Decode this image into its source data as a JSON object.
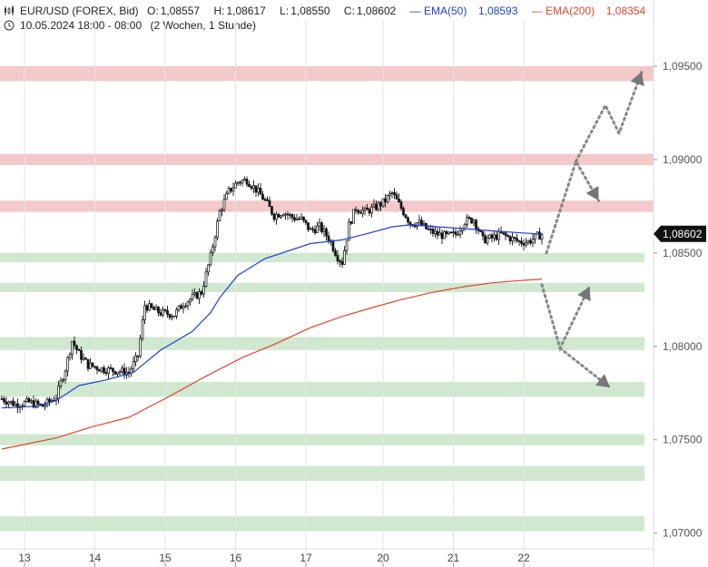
{
  "header": {
    "symbol": "EUR/USD (FOREX, Bid)",
    "open_label": "O:",
    "open": "1,08557",
    "high_label": "H:",
    "high": "1,08617",
    "low_label": "L:",
    "low": "1,08550",
    "close_label": "C:",
    "close": "1,08602",
    "ema50_label": "EMA(50)",
    "ema50_value": "1,08593",
    "ema200_label": "EMA(200)",
    "ema200_value": "1,08354",
    "range": "10.05.2024 18:00 - 08:00",
    "interval": "(2 Wochen, 1 Stunde)"
  },
  "chart_data": {
    "type": "candlestick",
    "ylim": [
      1.0695,
      1.0965
    ],
    "y_ticks": [
      "1,09500",
      "1,09000",
      "1,08500",
      "1,08000",
      "1,07500",
      "1,07000"
    ],
    "y_tick_values": [
      1.095,
      1.09,
      1.085,
      1.08,
      1.075,
      1.07
    ],
    "x_ticks": [
      "13",
      "14",
      "15",
      "16",
      "17",
      "20",
      "21",
      "22"
    ],
    "last_price_label": "1,08602",
    "last_price": 1.08602,
    "resistance_zones": [
      [
        1.0942,
        1.095
      ],
      [
        1.0897,
        1.0903
      ],
      [
        1.0872,
        1.0878
      ]
    ],
    "support_zones": [
      [
        1.0845,
        1.085
      ],
      [
        1.0829,
        1.0834
      ],
      [
        1.0798,
        1.0805
      ],
      [
        1.0773,
        1.0781
      ],
      [
        1.0747,
        1.0753
      ],
      [
        1.0728,
        1.0736
      ],
      [
        1.0701,
        1.0709
      ]
    ],
    "close_path": [
      [
        0,
        1.0772
      ],
      [
        6,
        1.0769
      ],
      [
        12,
        1.077
      ],
      [
        18,
        1.0768
      ],
      [
        24,
        1.0773
      ],
      [
        28,
        1.0788
      ],
      [
        31,
        1.0803
      ],
      [
        34,
        1.0796
      ],
      [
        38,
        1.079
      ],
      [
        44,
        1.0788
      ],
      [
        50,
        1.0787
      ],
      [
        56,
        1.0786
      ],
      [
        60,
        1.0795
      ],
      [
        63,
        1.0822
      ],
      [
        66,
        1.082
      ],
      [
        70,
        1.0818
      ],
      [
        76,
        1.0817
      ],
      [
        80,
        1.0823
      ],
      [
        84,
        1.0826
      ],
      [
        88,
        1.0829
      ],
      [
        92,
        1.0848
      ],
      [
        96,
        1.0872
      ],
      [
        100,
        1.0883
      ],
      [
        104,
        1.0888
      ],
      [
        108,
        1.0889
      ],
      [
        112,
        1.0884
      ],
      [
        116,
        1.0878
      ],
      [
        120,
        1.087
      ],
      [
        124,
        1.0872
      ],
      [
        128,
        1.0869
      ],
      [
        132,
        1.0868
      ],
      [
        136,
        1.0862
      ],
      [
        140,
        1.0864
      ],
      [
        144,
        1.0858
      ],
      [
        148,
        1.0848
      ],
      [
        150,
        1.0845
      ],
      [
        153,
        1.0865
      ],
      [
        156,
        1.0874
      ],
      [
        160,
        1.0872
      ],
      [
        164,
        1.0874
      ],
      [
        168,
        1.0877
      ],
      [
        172,
        1.0882
      ],
      [
        176,
        1.0874
      ],
      [
        180,
        1.0866
      ],
      [
        184,
        1.0866
      ],
      [
        188,
        1.0862
      ],
      [
        192,
        1.086
      ],
      [
        196,
        1.0859
      ],
      [
        200,
        1.086
      ],
      [
        204,
        1.0867
      ],
      [
        208,
        1.0868
      ],
      [
        212,
        1.0857
      ],
      [
        216,
        1.0858
      ],
      [
        220,
        1.086
      ],
      [
        224,
        1.0858
      ],
      [
        228,
        1.0856
      ],
      [
        232,
        1.0856
      ],
      [
        236,
        1.0859
      ],
      [
        238,
        1.086
      ]
    ],
    "ema50_path": [
      [
        0,
        1.0767
      ],
      [
        16,
        1.0768
      ],
      [
        24,
        1.0771
      ],
      [
        34,
        1.0779
      ],
      [
        46,
        1.0782
      ],
      [
        58,
        1.0786
      ],
      [
        70,
        1.0798
      ],
      [
        84,
        1.0808
      ],
      [
        92,
        1.0818
      ],
      [
        96,
        1.0826
      ],
      [
        104,
        1.0838
      ],
      [
        116,
        1.0847
      ],
      [
        136,
        1.0855
      ],
      [
        150,
        1.0857
      ],
      [
        160,
        1.086
      ],
      [
        172,
        1.0864
      ],
      [
        180,
        1.0865
      ],
      [
        192,
        1.0864
      ],
      [
        204,
        1.0863
      ],
      [
        214,
        1.0862
      ],
      [
        226,
        1.0861
      ],
      [
        238,
        1.086
      ]
    ],
    "ema200_path": [
      [
        0,
        1.0745
      ],
      [
        24,
        1.0751
      ],
      [
        40,
        1.0757
      ],
      [
        56,
        1.0762
      ],
      [
        72,
        1.0772
      ],
      [
        90,
        1.0784
      ],
      [
        106,
        1.0794
      ],
      [
        120,
        1.0801
      ],
      [
        136,
        1.081
      ],
      [
        150,
        1.0816
      ],
      [
        164,
        1.0821
      ],
      [
        176,
        1.0825
      ],
      [
        190,
        1.0829
      ],
      [
        204,
        1.0832
      ],
      [
        216,
        1.0834
      ],
      [
        226,
        1.0835
      ],
      [
        238,
        1.0836
      ]
    ],
    "scenario_paths": [
      [
        [
          240,
          1.085
        ],
        [
          253,
          1.0899
        ],
        [
          263,
          1.0878
        ]
      ],
      [
        [
          253,
          1.0899
        ],
        [
          266,
          1.0929
        ],
        [
          272,
          1.0914
        ],
        [
          282,
          1.0947
        ]
      ],
      [
        [
          238,
          1.0833
        ],
        [
          246,
          1.0799
        ],
        [
          259,
          1.0832
        ]
      ],
      [
        [
          246,
          1.0799
        ],
        [
          268,
          1.0778
        ]
      ]
    ]
  },
  "colors": {
    "candle": "#111111",
    "ema50": "#1f3fd6",
    "ema200": "#e0442c",
    "resistance": "#f3c9c9",
    "support": "#cfe8cf",
    "scenario": "#888888",
    "last_price_bg": "#111111"
  }
}
